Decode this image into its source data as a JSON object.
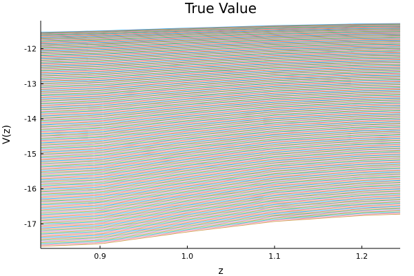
{
  "chart_data": {
    "type": "line",
    "title": "True Value",
    "xlabel": "z",
    "ylabel": "V(z)",
    "xlim": [
      0.832,
      1.244
    ],
    "ylim": [
      -17.7,
      -11.2
    ],
    "xticks": [
      0.9,
      1.0,
      1.1,
      1.2
    ],
    "yticks": [
      -12,
      -13,
      -14,
      -15,
      -16,
      -17
    ],
    "xtick_labels": [
      "0.9",
      "1.0",
      "1.1",
      "1.2"
    ],
    "ytick_labels": [
      "-12",
      "-13",
      "-14",
      "-15",
      "-16",
      "-17"
    ],
    "grid": false,
    "legend": "none",
    "series_count": 200,
    "x": [
      0.832,
      0.9,
      1.0,
      1.1,
      1.2,
      1.244
    ],
    "top_series": [
      -11.53,
      -11.49,
      -11.41,
      -11.34,
      -11.29,
      -11.28
    ],
    "bottom_series": [
      -17.64,
      -17.57,
      -17.23,
      -16.93,
      -16.76,
      -16.72
    ],
    "palette": [
      "#009AFA",
      "#E36F47",
      "#3EA44E",
      "#C371D2",
      "#AC8E18",
      "#00AAAE",
      "#ED5E93",
      "#C68225"
    ]
  }
}
